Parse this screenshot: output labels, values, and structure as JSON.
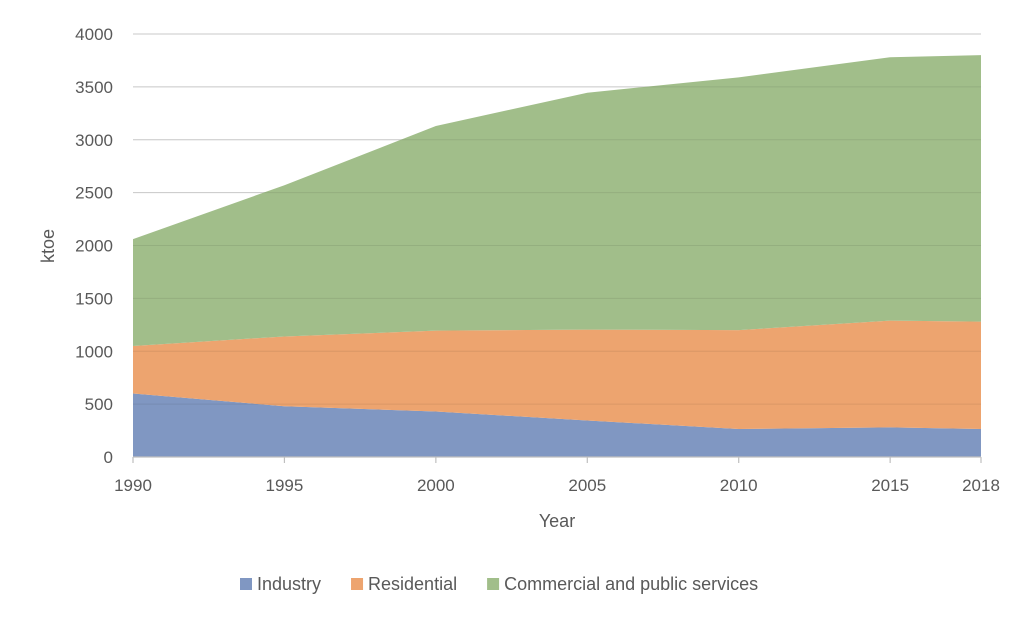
{
  "chart_data": {
    "type": "area",
    "stacked": true,
    "x": [
      1990,
      1995,
      2000,
      2005,
      2010,
      2015,
      2018
    ],
    "series": [
      {
        "name": "Industry",
        "values": [
          600,
          480,
          430,
          345,
          265,
          280,
          265
        ],
        "color": "#8097C2"
      },
      {
        "name": "Residential",
        "values": [
          450,
          660,
          765,
          860,
          935,
          1010,
          1015
        ],
        "color": "#EDA46F"
      },
      {
        "name": "Commercial and public services",
        "values": [
          1010,
          1430,
          1935,
          2240,
          2390,
          2490,
          2520
        ],
        "color": "#A1BE8A"
      }
    ],
    "xlabel": "Year",
    "ylabel": "ktoe",
    "ylim": [
      0,
      4000
    ],
    "yticks": [
      0,
      500,
      1000,
      1500,
      2000,
      2500,
      3000,
      3500,
      4000
    ],
    "xtick_labels": [
      "1990",
      "1995",
      "2000",
      "2005",
      "2010",
      "2015",
      "2018"
    ],
    "grid": true,
    "grid_color": "#D9D9D9",
    "axis_color": "#BFBFBF",
    "legend_position": "bottom"
  }
}
